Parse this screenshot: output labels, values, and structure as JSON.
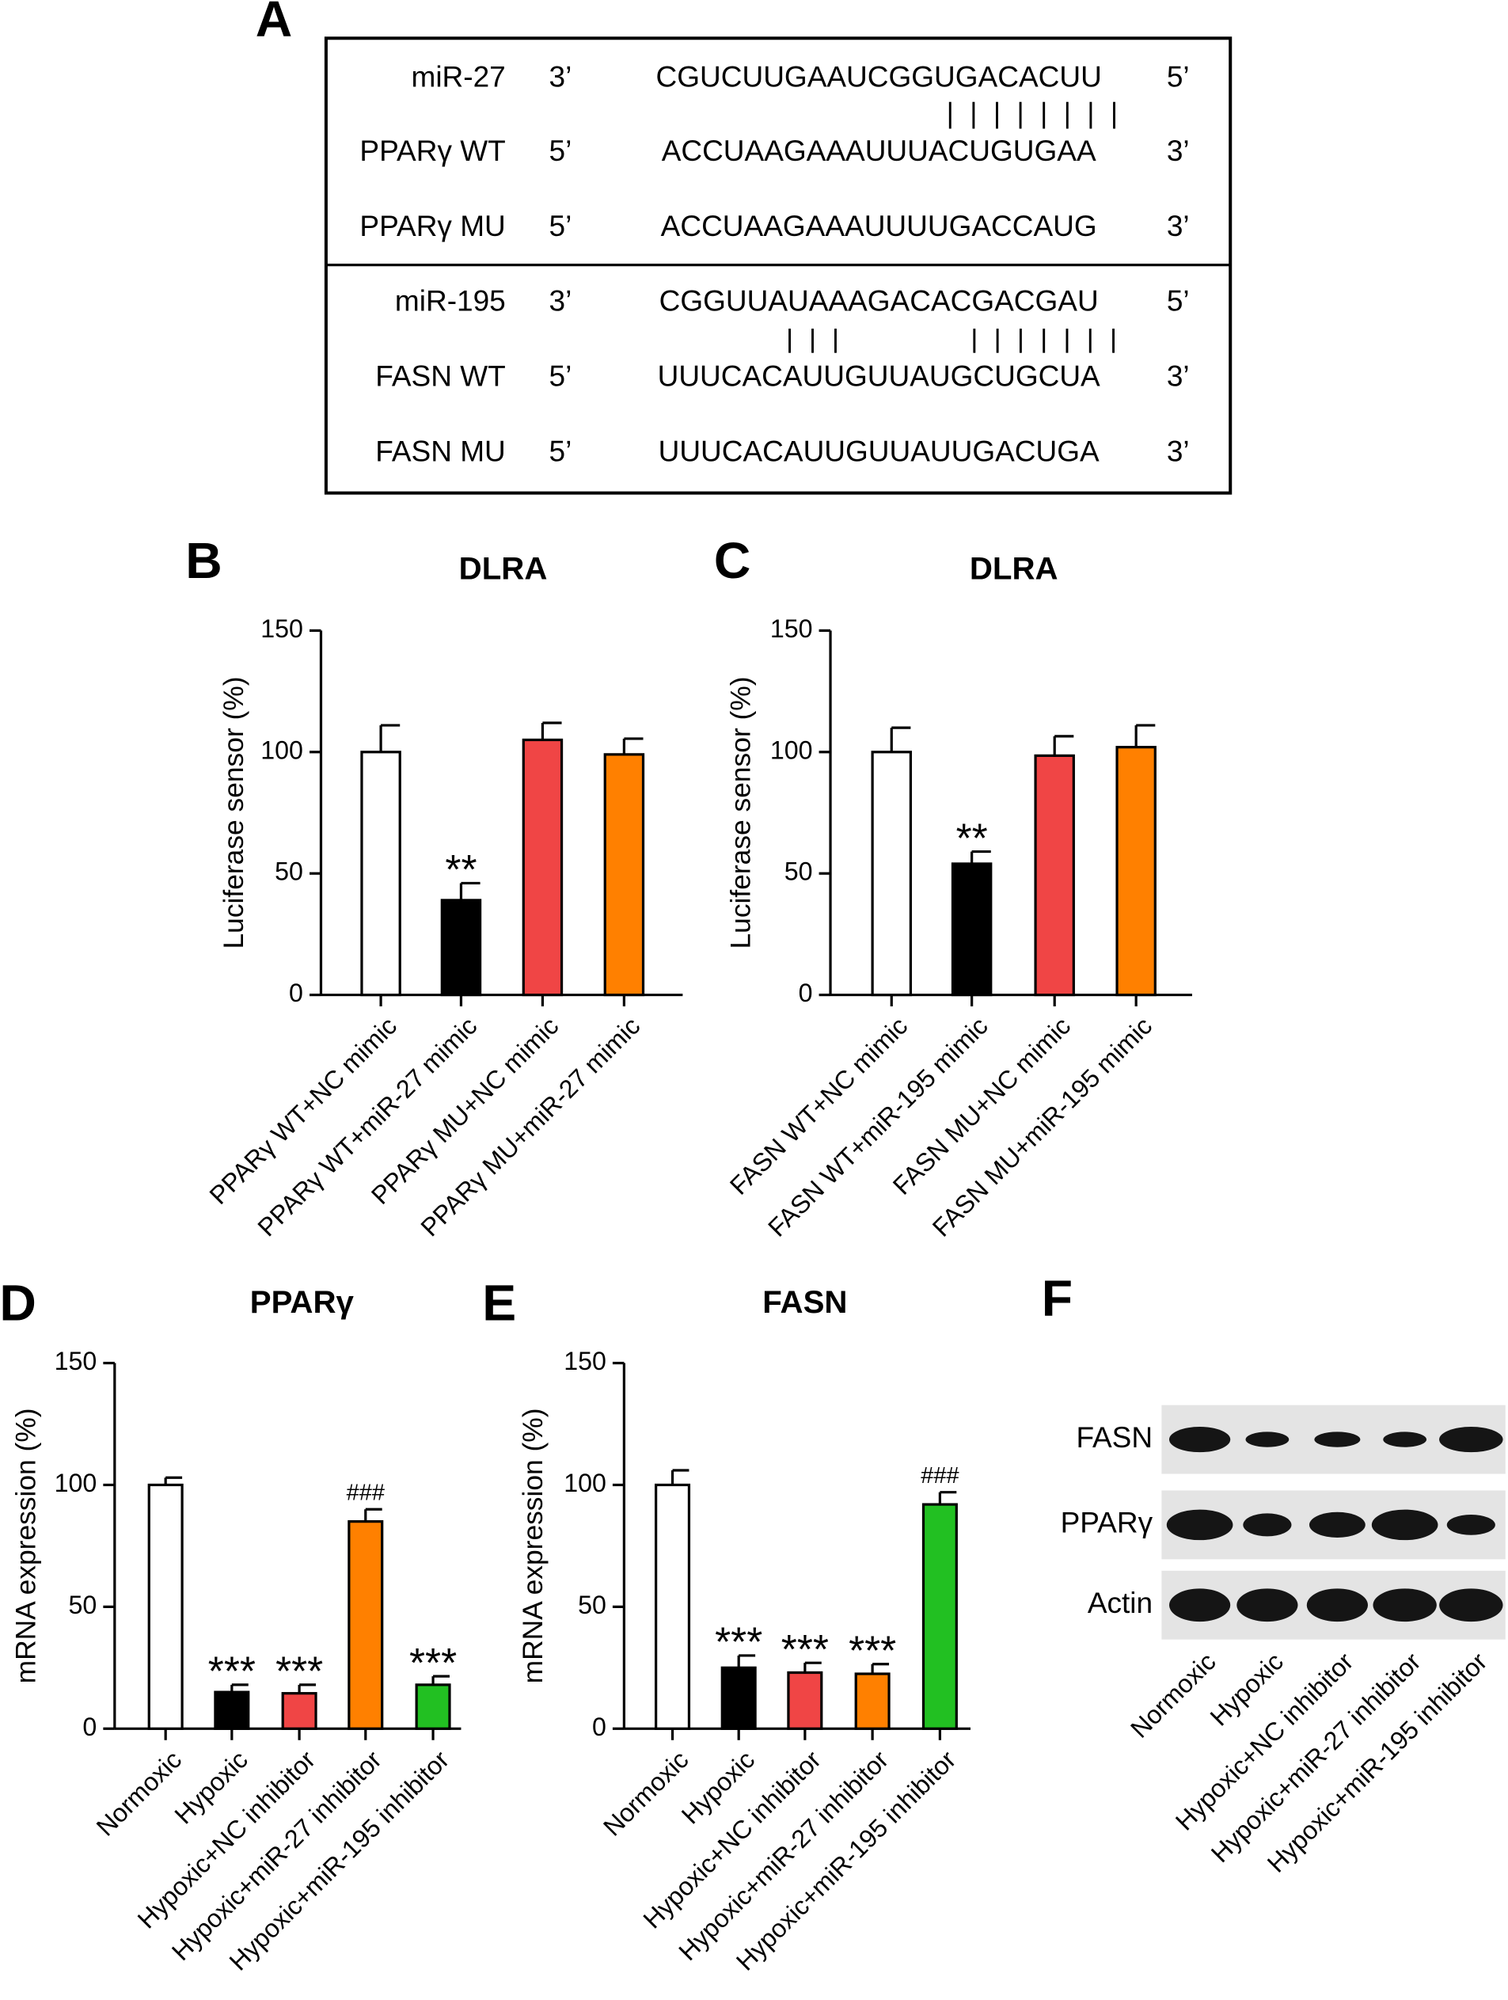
{
  "panel_a": {
    "label": "A",
    "rows": [
      {
        "name": "miR-27",
        "end_left": "3’",
        "sequence": "CGUCUUGAAUCGGUGACACUU",
        "end_right": "5’"
      },
      {
        "name": "PPARγ WT",
        "end_left": "5’",
        "sequence": "ACCUAAGAAAUUUACUGUGAA",
        "end_right": "3’"
      },
      {
        "name": "PPARγ MU",
        "end_left": "5’",
        "sequence": "ACCUAAGAAAUUUUGACCAUG",
        "end_right": "3’"
      },
      {
        "name": "miR-195",
        "end_left": "3’",
        "sequence": "CGGUUAUAAAGACACGACGAU",
        "end_right": "5’"
      },
      {
        "name": "FASN WT",
        "end_left": "5’",
        "sequence": "UUUCACAUUGUUAUGCUGCUA",
        "end_right": "3’"
      },
      {
        "name": "FASN MU",
        "end_left": "5’",
        "sequence": "UUUCACAUUGUUAUUGACUGA",
        "end_right": "3’"
      }
    ]
  },
  "chart_data": [
    {
      "type": "bar",
      "label": "B",
      "title": "DLRA",
      "y_label": "Luciferase sensor (%)",
      "categories": [
        "PPARγ WT+NC mimic",
        "PPARγ WT+miR-27 mimic",
        "PPARγ MU+NC mimic",
        "PPARγ MU+miR-27 mimic"
      ],
      "values": [
        100,
        39,
        105,
        99
      ],
      "errors": [
        11,
        7,
        7,
        6.5
      ],
      "annotations": [
        null,
        "**",
        null,
        null
      ],
      "colors": [
        "#ffffff",
        "#000000",
        "#f04545",
        "#ff8000"
      ],
      "ylim": [
        0,
        150
      ],
      "yticks": [
        0,
        50,
        100,
        150
      ]
    },
    {
      "type": "bar",
      "label": "C",
      "title": "DLRA",
      "y_label": "Luciferase sensor (%)",
      "categories": [
        "FASN WT+NC mimic",
        "FASN WT+miR-195 mimic",
        "FASN MU+NC mimic",
        "FASN MU+miR-195 mimic"
      ],
      "values": [
        100,
        54,
        98.5,
        102
      ],
      "errors": [
        10,
        5,
        8,
        9
      ],
      "annotations": [
        null,
        "**",
        null,
        null
      ],
      "colors": [
        "#ffffff",
        "#000000",
        "#f04545",
        "#ff8000"
      ],
      "ylim": [
        0,
        150
      ],
      "yticks": [
        0,
        50,
        100,
        150
      ]
    },
    {
      "type": "bar",
      "label": "D",
      "title": "PPARγ",
      "y_label": "mRNA expression (%)",
      "categories": [
        "Normoxic",
        "Hypoxic",
        "Hypoxic+NC inhibitor",
        "Hypoxic+miR-27 inhibitor",
        "Hypoxic+miR-195 inhibitor"
      ],
      "values": [
        100,
        15,
        14.5,
        85,
        18
      ],
      "errors": [
        3,
        3,
        3.5,
        5,
        3.5
      ],
      "annotations": [
        null,
        "***",
        "***",
        "###",
        "***"
      ],
      "colors": [
        "#ffffff",
        "#000000",
        "#f04545",
        "#ff8000",
        "#22c022"
      ],
      "ylim": [
        0,
        150
      ],
      "yticks": [
        0,
        50,
        100,
        150
      ]
    },
    {
      "type": "bar",
      "label": "E",
      "title": "FASN",
      "y_label": "mRNA expression (%)",
      "categories": [
        "Normoxic",
        "Hypoxic",
        "Hypoxic+NC inhibitor",
        "Hypoxic+miR-27 inhibitor",
        "Hypoxic+miR-195 inhibitor"
      ],
      "values": [
        100,
        25,
        23,
        22.5,
        92
      ],
      "errors": [
        6,
        5,
        4,
        4,
        5
      ],
      "annotations": [
        null,
        "***",
        "***",
        "***",
        "###"
      ],
      "colors": [
        "#ffffff",
        "#000000",
        "#f04545",
        "#ff8000",
        "#22c022"
      ],
      "ylim": [
        0,
        150
      ],
      "yticks": [
        0,
        50,
        100,
        150
      ]
    }
  ],
  "panel_f": {
    "label": "F",
    "rows": [
      "FASN",
      "PPARγ",
      "Actin"
    ],
    "lanes": [
      "Normoxic",
      "Hypoxic",
      "Hypoxic+NC inhibitor",
      "Hypoxic+miR-27 inhibitor",
      "Hypoxic+miR-195 inhibitor"
    ]
  }
}
